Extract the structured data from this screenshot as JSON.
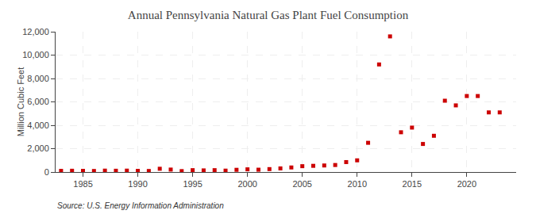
{
  "chart_data": {
    "type": "scatter",
    "title": "Annual Pennsylvania Natural Gas Plant Fuel Consumption",
    "ylabel": "Million Cubic Feet",
    "annotations": [
      "Source: U.S. Energy Information Administration"
    ],
    "x": [
      1983,
      1984,
      1985,
      1986,
      1987,
      1988,
      1989,
      1990,
      1991,
      1992,
      1993,
      1994,
      1995,
      1996,
      1997,
      1998,
      1999,
      2000,
      2001,
      2002,
      2003,
      2004,
      2005,
      2006,
      2007,
      2008,
      2009,
      2010,
      2011,
      2012,
      2013,
      2014,
      2015,
      2016,
      2017,
      2018,
      2019,
      2020,
      2021,
      2022,
      2023
    ],
    "values": [
      100,
      110,
      100,
      90,
      120,
      110,
      120,
      100,
      90,
      280,
      210,
      80,
      160,
      140,
      160,
      120,
      190,
      230,
      200,
      250,
      310,
      390,
      500,
      530,
      560,
      600,
      850,
      1000,
      2500,
      9200,
      11600,
      3400,
      3800,
      2400,
      3100,
      6100,
      5700,
      6500,
      6500,
      5100,
      5100
    ],
    "color": "#cc0000",
    "marker": "square",
    "xlim": [
      1982.5,
      2024.5
    ],
    "xticks": [
      1985,
      1990,
      1995,
      2000,
      2005,
      2010,
      2015,
      2020
    ],
    "ylim": [
      0,
      12000
    ],
    "yticks": [
      0,
      {
        "value": 2000,
        "label": "2,000"
      },
      {
        "value": 4000,
        "label": "4,000"
      },
      {
        "value": 6000,
        "label": "6,000"
      },
      {
        "value": 8000,
        "label": "8,000"
      },
      {
        "value": 10000,
        "label": "10,000"
      },
      {
        "value": 12000,
        "label": "12,000"
      }
    ],
    "grid": true
  }
}
